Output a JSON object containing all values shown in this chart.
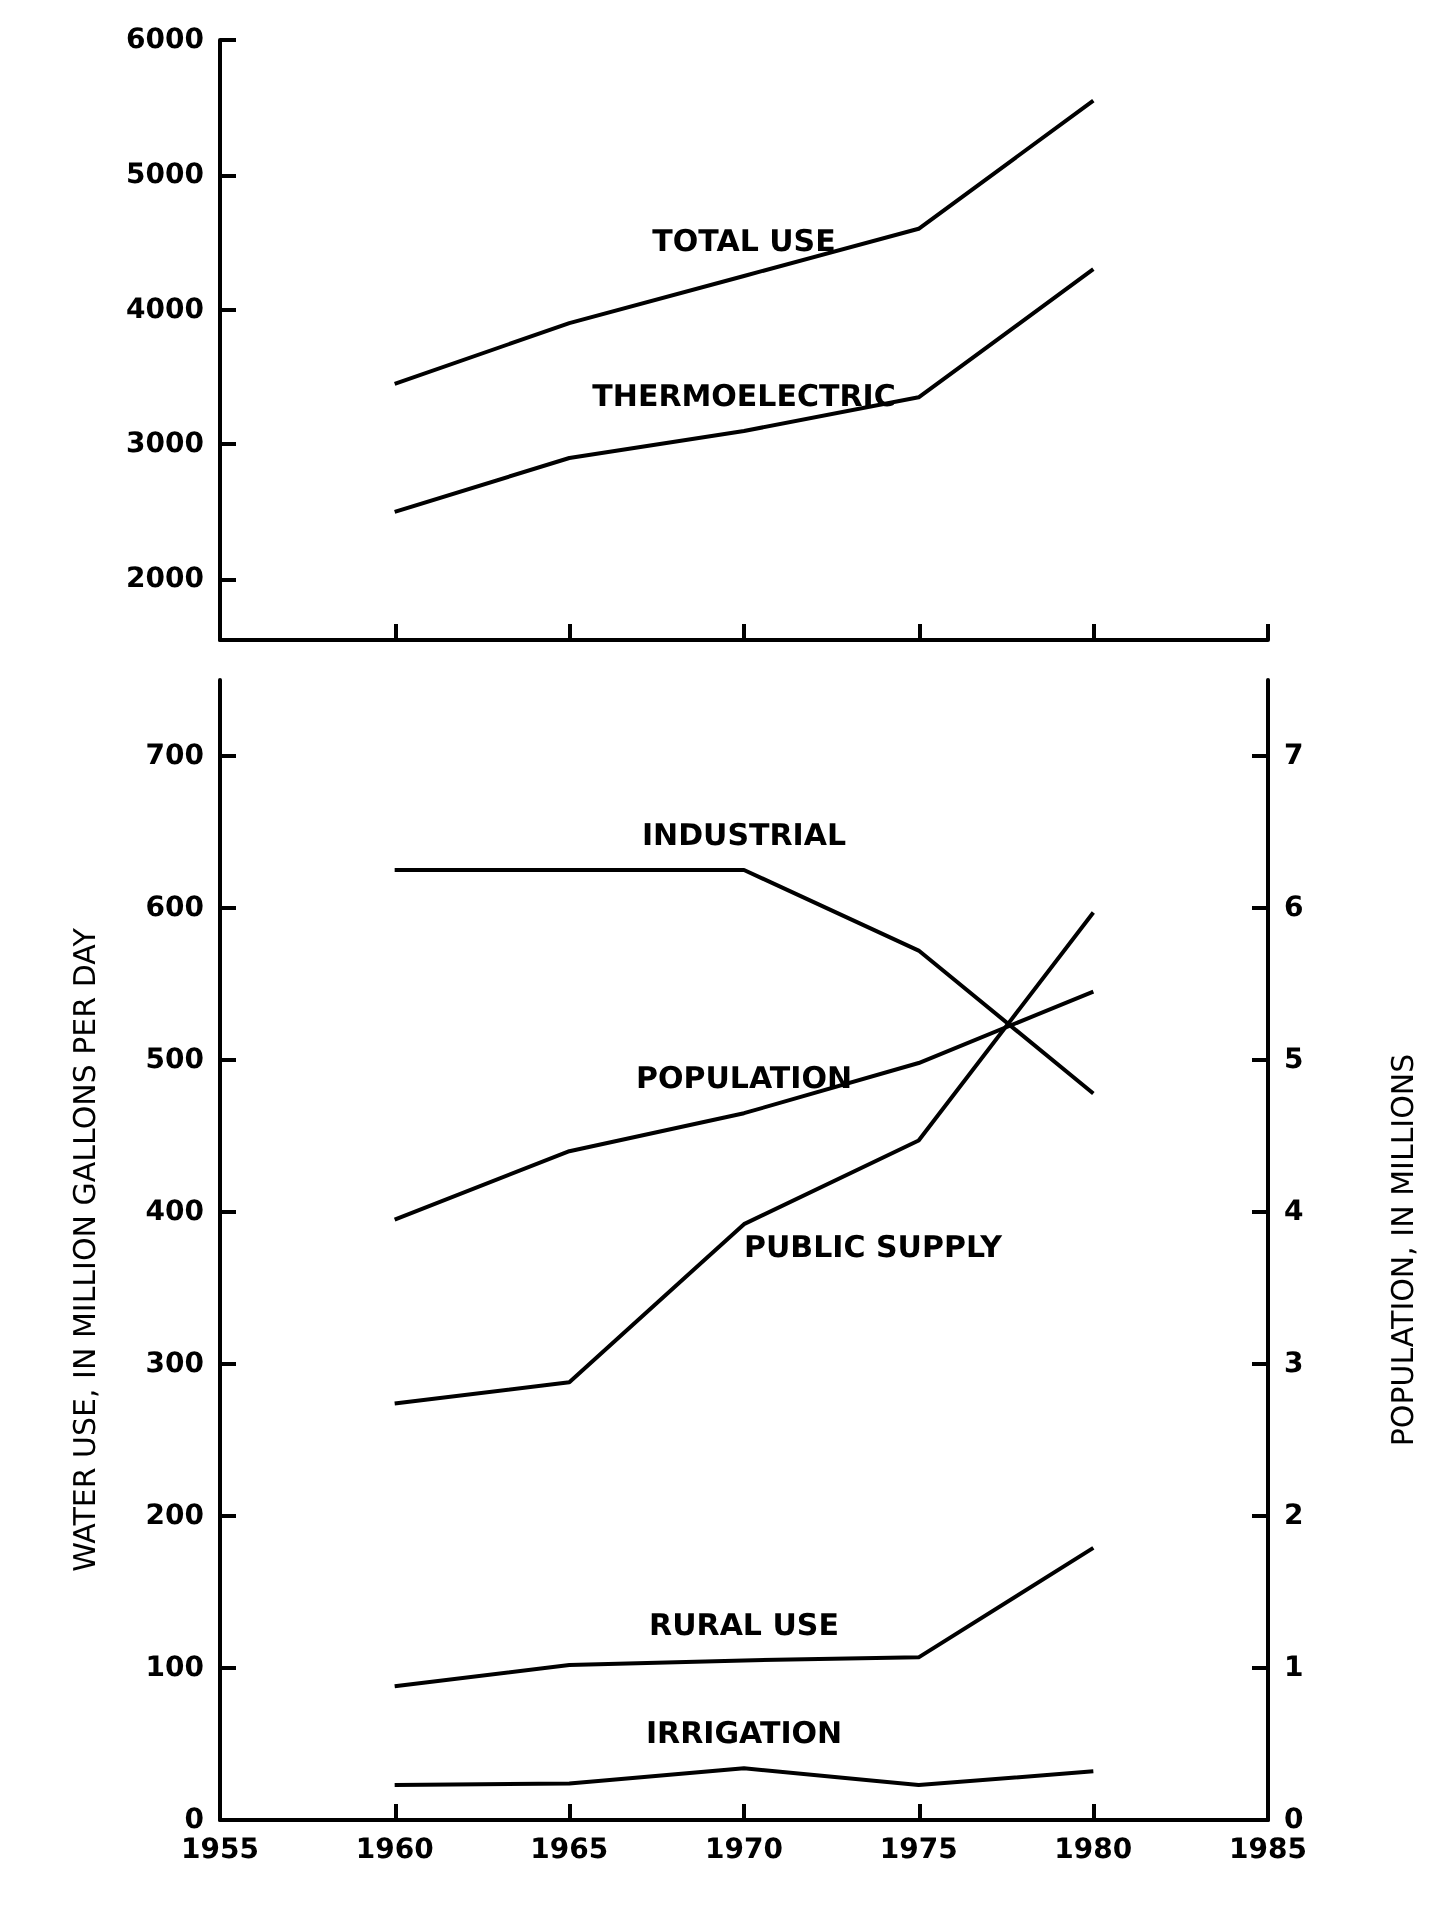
{
  "chart_data": [
    {
      "type": "line",
      "x": [
        1960,
        1965,
        1970,
        1975,
        1980
      ],
      "xlim": [
        1955,
        1985
      ],
      "xticks": [
        1955,
        1960,
        1965,
        1970,
        1975,
        1980,
        1985
      ],
      "ylim": [
        1550,
        6000
      ],
      "yticks": [
        2000,
        3000,
        4000,
        5000,
        6000
      ],
      "tick_labels": "y",
      "marker": "none",
      "grid": false,
      "legend": false,
      "series": [
        {
          "name": "TOTAL USE",
          "color": "#000000",
          "values": [
            3450,
            3900,
            4250,
            4600,
            5550
          ]
        },
        {
          "name": "THERMOELECTRIC",
          "color": "#000000",
          "values": [
            2500,
            2900,
            3100,
            3350,
            4300
          ]
        }
      ]
    },
    {
      "type": "line",
      "x": [
        1960,
        1965,
        1970,
        1975,
        1980
      ],
      "xlim": [
        1955,
        1985
      ],
      "xticks": [
        1955,
        1960,
        1965,
        1970,
        1975,
        1980,
        1985
      ],
      "ylim": [
        0,
        750
      ],
      "yticks": [
        0,
        100,
        200,
        300,
        400,
        500,
        600,
        700
      ],
      "y2lim": [
        0,
        7.5
      ],
      "y2ticks": [
        0,
        1,
        2,
        3,
        4,
        5,
        6,
        7
      ],
      "ylabel": "WATER USE, IN MILLION GALLONS PER DAY",
      "y2label": "POPULATION, IN MILLIONS",
      "marker": "none",
      "grid": false,
      "legend": false,
      "series": [
        {
          "name": "INDUSTRIAL",
          "color": "#000000",
          "values": [
            625,
            625,
            625,
            572,
            478
          ]
        },
        {
          "name": "POPULATION",
          "color": "#000000",
          "axis": "y2",
          "values": [
            3.95,
            4.4,
            4.65,
            4.98,
            5.45
          ]
        },
        {
          "name": "PUBLIC SUPPLY",
          "color": "#000000",
          "values": [
            274,
            288,
            392,
            447,
            597
          ]
        },
        {
          "name": "RURAL USE",
          "color": "#000000",
          "values": [
            88,
            102,
            105,
            107,
            179
          ]
        },
        {
          "name": "IRRIGATION",
          "color": "#000000",
          "values": [
            23,
            24,
            34,
            23,
            32
          ]
        }
      ]
    }
  ]
}
